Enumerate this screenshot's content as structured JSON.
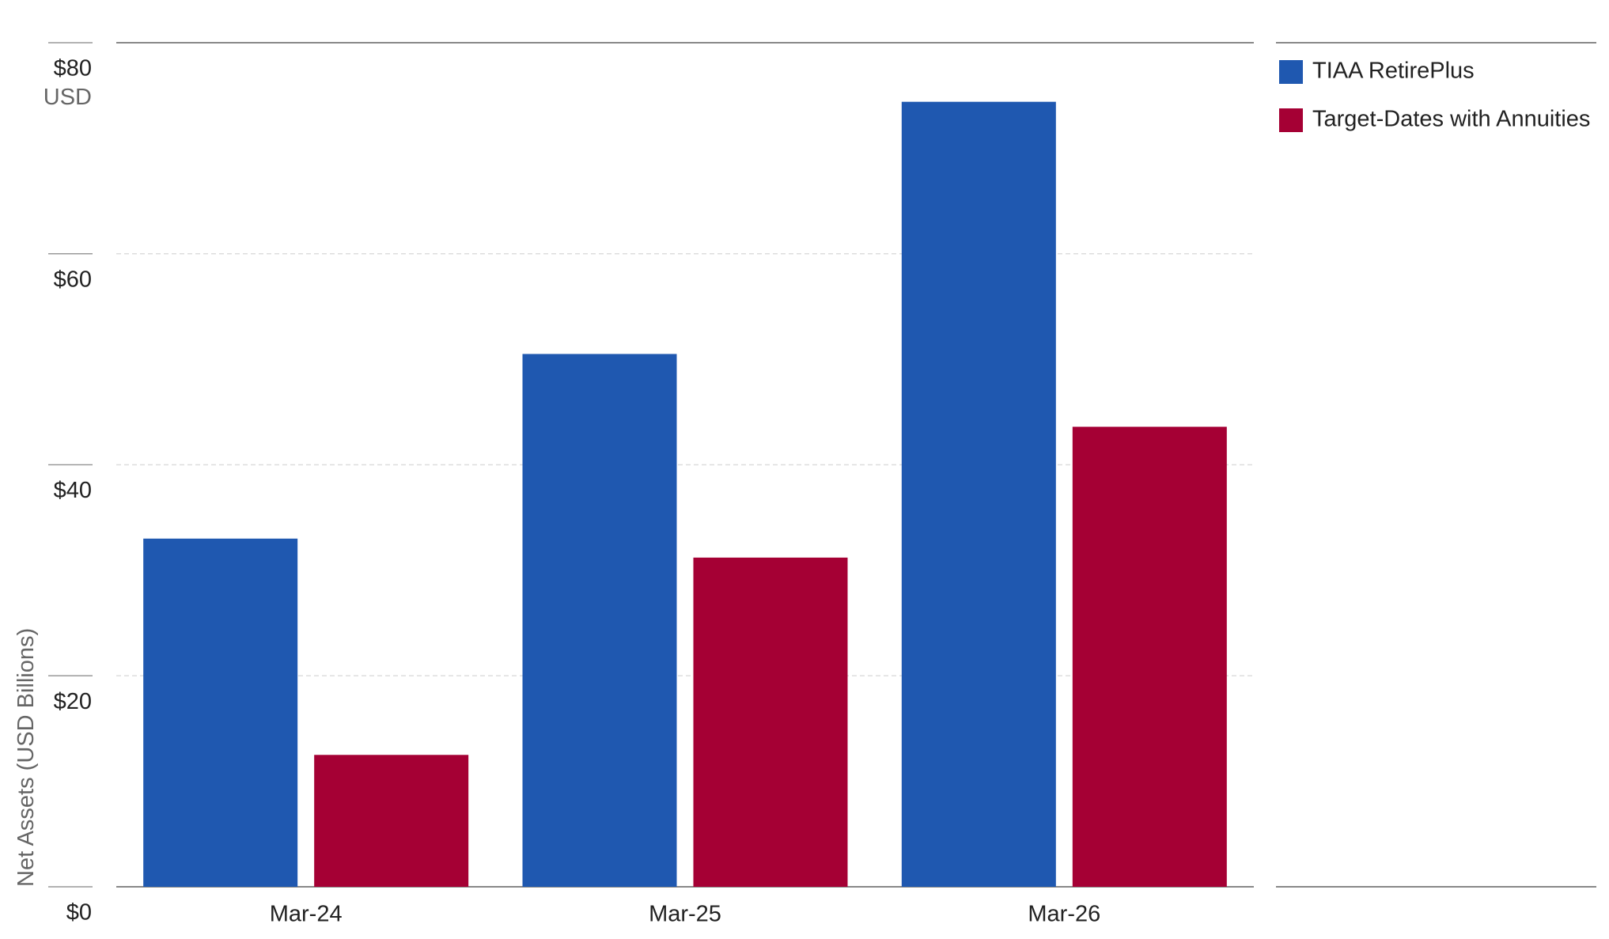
{
  "chart_data": {
    "type": "bar",
    "y_label": "Net Assets (USD Billions)",
    "y_unit": "USD",
    "categories": [
      "Mar-24",
      "Mar-25",
      "Mar-26"
    ],
    "series": [
      {
        "name": "TIAA RetirePlus",
        "color": "#1f58b0",
        "values": [
          33.0,
          50.5,
          74.4
        ]
      },
      {
        "name": "Target-Dates with Annuities",
        "color": "#a50034",
        "values": [
          12.5,
          31.2,
          43.6
        ]
      }
    ],
    "ylim": [
      0,
      80
    ],
    "yticks": [
      {
        "value": 0,
        "label": "$0"
      },
      {
        "value": 20,
        "label": "$20"
      },
      {
        "value": 40,
        "label": "$40"
      },
      {
        "value": 60,
        "label": "$60"
      },
      {
        "value": 80,
        "label": "$80"
      }
    ],
    "grid": true,
    "legend": "right"
  }
}
